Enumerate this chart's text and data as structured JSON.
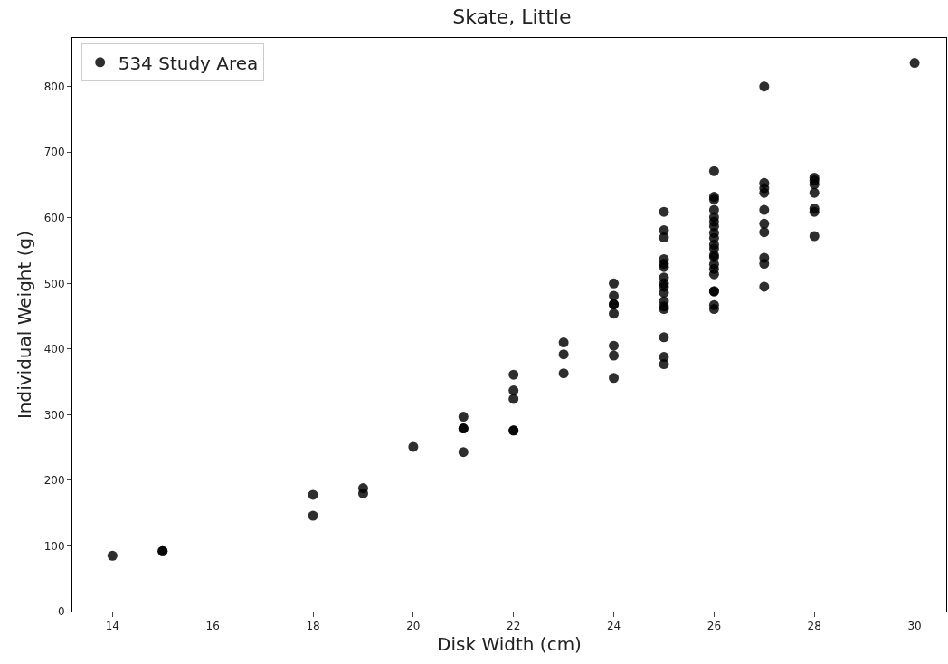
{
  "chart_data": {
    "type": "scatter",
    "title": "Skate, Little",
    "xlabel": "Disk Width (cm)",
    "ylabel": "Individual Weight (g)",
    "series": [
      {
        "name": "534 Study Area",
        "color": "#000000",
        "x": [
          14,
          15,
          15,
          18,
          18,
          19,
          19,
          20,
          21,
          21,
          21,
          21,
          22,
          22,
          22,
          22,
          22,
          23,
          23,
          23,
          24,
          24,
          24,
          24,
          24,
          24,
          24,
          24,
          25,
          25,
          25,
          25,
          25,
          25,
          25,
          25,
          25,
          25,
          25,
          25,
          25,
          25,
          25,
          25,
          26,
          26,
          26,
          26,
          26,
          26,
          26,
          26,
          26,
          26,
          26,
          26,
          26,
          26,
          26,
          26,
          26,
          26,
          26,
          26,
          27,
          27,
          27,
          27,
          27,
          27,
          27,
          27,
          27,
          27,
          28,
          28,
          28,
          28,
          28,
          28,
          28,
          30
        ],
        "values": [
          85,
          92,
          92,
          178,
          146,
          188,
          180,
          251,
          297,
          279,
          279,
          243,
          361,
          337,
          324,
          276,
          276,
          410,
          392,
          363,
          500,
          481,
          468,
          468,
          454,
          405,
          390,
          356,
          609,
          581,
          570,
          537,
          525,
          509,
          500,
          495,
          486,
          473,
          465,
          461,
          418,
          388,
          377,
          530,
          671,
          632,
          628,
          612,
          601,
          594,
          587,
          577,
          569,
          559,
          553,
          543,
          529,
          522,
          514,
          488,
          488,
          467,
          461,
          540,
          800,
          653,
          645,
          638,
          612,
          591,
          578,
          539,
          530,
          495,
          661,
          657,
          651,
          638,
          614,
          609,
          572,
          836
        ]
      }
    ],
    "xlim": [
      13.2,
      30.63
    ],
    "xticks": [
      14,
      16,
      18,
      20,
      22,
      24,
      26,
      28,
      30
    ],
    "ylim": [
      0,
      874
    ],
    "yticks": [
      0,
      100,
      200,
      300,
      400,
      500,
      600,
      700,
      800
    ],
    "legend": "top left",
    "marker": "circle"
  }
}
